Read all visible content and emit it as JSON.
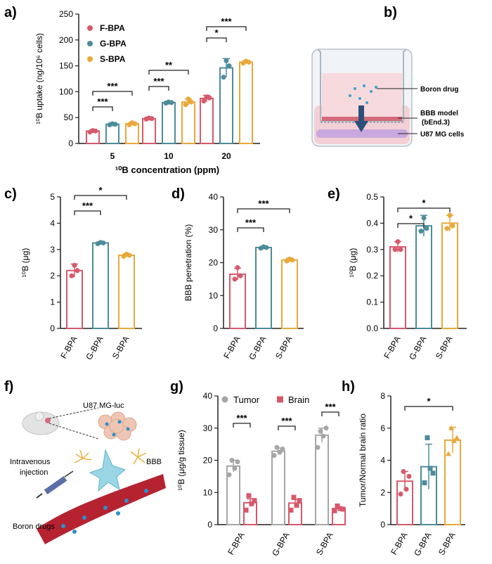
{
  "colors": {
    "F-BPA": "#d6596c",
    "G-BPA": "#4d8c9a",
    "S-BPA": "#e8a93a",
    "Tumor": "#a6a6a6",
    "Brain": "#d6596c",
    "axis": "#222222"
  },
  "panel_labels": {
    "a": "a)",
    "b": "b)",
    "c": "c)",
    "d": "d)",
    "e": "e)",
    "f": "f)",
    "g": "g)",
    "h": "h)"
  },
  "schematic_b": {
    "labels": [
      "Boron drug",
      "BBB model",
      "(bEnd.3)",
      "U87 MG cells"
    ]
  },
  "schematic_f": {
    "labels": [
      "U87 MG-luc",
      "BBB",
      "Intravenous",
      "injection",
      "Boron drugs"
    ]
  },
  "chart_data": [
    {
      "id": "a",
      "type": "bar",
      "ylabel": "¹⁰B uptake (ng/10⁶ cells)",
      "xlabel": "¹⁰B concentration (ppm)",
      "categories": [
        "5",
        "10",
        "20"
      ],
      "ylim": [
        0,
        250
      ],
      "yticks": [
        0,
        50,
        100,
        150,
        200,
        250
      ],
      "legend": {
        "position": "top-left",
        "entries": [
          "F-BPA",
          "G-BPA",
          "S-BPA"
        ]
      },
      "series": [
        {
          "name": "F-BPA",
          "values": [
            24,
            48,
            87
          ],
          "err": [
            2,
            3,
            6
          ],
          "points": [
            [
              22,
              25,
              24
            ],
            [
              47,
              49,
              48
            ],
            [
              82,
              90,
              88
            ]
          ]
        },
        {
          "name": "G-BPA",
          "values": [
            37,
            79,
            146
          ],
          "err": [
            2,
            3,
            18
          ],
          "points": [
            [
              36,
              38,
              37
            ],
            [
              78,
              80,
              79
            ],
            [
              128,
              160,
              150
            ]
          ]
        },
        {
          "name": "S-BPA",
          "values": [
            38,
            80,
            157
          ],
          "err": [
            3,
            6,
            3
          ],
          "points": [
            [
              36,
              40,
              38
            ],
            [
              75,
              86,
              80
            ],
            [
              155,
              159,
              157
            ]
          ]
        }
      ],
      "significance": [
        {
          "group": "5",
          "from": "F-BPA",
          "to": "G-BPA",
          "label": "***"
        },
        {
          "group": "5",
          "from": "F-BPA",
          "to": "S-BPA",
          "label": "***"
        },
        {
          "group": "10",
          "from": "F-BPA",
          "to": "G-BPA",
          "label": "***"
        },
        {
          "group": "10",
          "from": "F-BPA",
          "to": "S-BPA",
          "label": "**"
        },
        {
          "group": "20",
          "from": "F-BPA",
          "to": "G-BPA",
          "label": "*"
        },
        {
          "group": "20",
          "from": "F-BPA",
          "to": "S-BPA",
          "label": "***"
        }
      ]
    },
    {
      "id": "c",
      "type": "bar",
      "ylabel": "¹⁰B (μg)",
      "categories": [
        "F-BPA",
        "G-BPA",
        "S-BPA"
      ],
      "ylim": [
        0,
        5
      ],
      "yticks": [
        0,
        1,
        2,
        3,
        4,
        5
      ],
      "values": [
        2.2,
        3.25,
        2.78
      ],
      "err": [
        0.25,
        0.04,
        0.06
      ],
      "points": [
        [
          2.0,
          2.4,
          2.2
        ],
        [
          3.22,
          3.27,
          3.25
        ],
        [
          2.74,
          2.82,
          2.78
        ]
      ],
      "significance": [
        {
          "from": "F-BPA",
          "to": "G-BPA",
          "label": "***"
        },
        {
          "from": "F-BPA",
          "to": "S-BPA",
          "label": "*"
        }
      ]
    },
    {
      "id": "d",
      "type": "bar",
      "ylabel": "BBB penetration (%)",
      "categories": [
        "F-BPA",
        "G-BPA",
        "S-BPA"
      ],
      "ylim": [
        0,
        40
      ],
      "yticks": [
        0,
        10,
        20,
        30,
        40
      ],
      "values": [
        16.5,
        24.6,
        20.8
      ],
      "err": [
        1.8,
        0.3,
        0.6
      ],
      "points": [
        [
          15,
          18.5,
          16
        ],
        [
          24.4,
          24.8,
          24.6
        ],
        [
          20.5,
          21.1,
          20.8
        ]
      ],
      "significance": [
        {
          "from": "F-BPA",
          "to": "G-BPA",
          "label": "***"
        },
        {
          "from": "F-BPA",
          "to": "S-BPA",
          "label": "***"
        }
      ]
    },
    {
      "id": "e",
      "type": "bar",
      "ylabel": "¹⁰B (μg)",
      "categories": [
        "F-BPA",
        "G-BPA",
        "S-BPA"
      ],
      "ylim": [
        0,
        0.5
      ],
      "yticks": [
        0.0,
        0.1,
        0.2,
        0.3,
        0.4,
        0.5
      ],
      "values": [
        0.31,
        0.39,
        0.4
      ],
      "err": [
        0.02,
        0.04,
        0.03
      ],
      "points": [
        [
          0.3,
          0.33,
          0.3
        ],
        [
          0.37,
          0.42,
          0.38
        ],
        [
          0.38,
          0.43,
          0.39
        ]
      ],
      "significance": [
        {
          "from": "F-BPA",
          "to": "G-BPA",
          "label": "*"
        },
        {
          "from": "F-BPA",
          "to": "S-BPA",
          "label": "*"
        }
      ]
    },
    {
      "id": "g",
      "type": "bar",
      "ylabel": "¹⁰B (μg/g tissue)",
      "categories": [
        "F-BPA",
        "G-BPA",
        "S-BPA"
      ],
      "ylim": [
        0,
        40
      ],
      "yticks": [
        0,
        10,
        20,
        30,
        40
      ],
      "legend": {
        "position": "top",
        "entries": [
          "Tumor",
          "Brain"
        ]
      },
      "series": [
        {
          "name": "Tumor",
          "values": [
            18.2,
            22.8,
            27.8
          ],
          "err": [
            1.8,
            1.0,
            2.2
          ],
          "points": [
            [
              15.5,
              20,
              17.5,
              19.5
            ],
            [
              21.5,
              24,
              22.5,
              23.5
            ],
            [
              24,
              29,
              27.5,
              30
            ]
          ]
        },
        {
          "name": "Brain",
          "values": [
            6.8,
            6.7,
            5.0
          ],
          "err": [
            1.2,
            1.1,
            0.5
          ],
          "points": [
            [
              4.5,
              9,
              6.5,
              7.5
            ],
            [
              4.5,
              8.5,
              6,
              7.5
            ],
            [
              4.3,
              5.8,
              5,
              4.8
            ]
          ]
        }
      ],
      "significance": [
        {
          "group": "F-BPA",
          "label": "***"
        },
        {
          "group": "G-BPA",
          "label": "***"
        },
        {
          "group": "S-BPA",
          "label": "***"
        }
      ]
    },
    {
      "id": "h",
      "type": "bar",
      "ylabel": "Tumor/Normal brain ratio",
      "categories": [
        "F-BPA",
        "G-BPA",
        "S-BPA"
      ],
      "ylim": [
        0,
        8
      ],
      "yticks": [
        0,
        2,
        4,
        6,
        8
      ],
      "values": [
        2.7,
        3.6,
        5.25
      ],
      "err": [
        0.6,
        1.4,
        0.8
      ],
      "points": [
        [
          1.9,
          3.3,
          2.2,
          3.0
        ],
        [
          2.6,
          5.4,
          3.5,
          3.2
        ],
        [
          4.4,
          6.0,
          5.2,
          5.4
        ]
      ],
      "significance": [
        {
          "from": "F-BPA",
          "to": "S-BPA",
          "label": "*"
        }
      ]
    }
  ]
}
